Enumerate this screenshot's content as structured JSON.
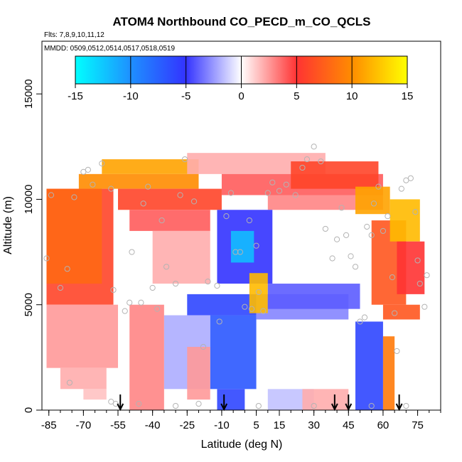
{
  "chart_data": {
    "type": "heatmap",
    "title": "ATOM4 Northbound CO_PECD_m_CO_QCLS",
    "subtitle_flights": "Flts: 7,8,9,10,11,12",
    "subtitle_dates": "MMDD: 0509,0512,0514,0517,0518,0519",
    "xlabel": "Latitude (deg N)",
    "ylabel": "Altitude (m)",
    "x_ticks": [
      -85,
      -70,
      -55,
      -40,
      -25,
      -10,
      5,
      15,
      30,
      45,
      60,
      75
    ],
    "y_ticks": [
      0,
      5000,
      10000,
      15000
    ],
    "xlim": [
      -88,
      85
    ],
    "ylim": [
      0,
      17500
    ],
    "colorbar": {
      "ticks": [
        -15,
        -10,
        -5,
        0,
        5,
        10,
        15
      ],
      "range": [
        -15,
        15
      ],
      "stops": [
        {
          "v": -15,
          "color": "#00ffff"
        },
        {
          "v": -10,
          "color": "#1e90ff"
        },
        {
          "v": -5,
          "color": "#3333ff"
        },
        {
          "v": 0,
          "color": "#ffffff"
        },
        {
          "v": 5,
          "color": "#ff3333"
        },
        {
          "v": 10,
          "color": "#ff8c00"
        },
        {
          "v": 15,
          "color": "#ffff00"
        }
      ]
    },
    "profile_latitudes": [
      -54,
      -9,
      39,
      45,
      67
    ],
    "regions": [
      {
        "lat": [
          -86,
          -57
        ],
        "alt": [
          5000,
          10500
        ],
        "value": 6
      },
      {
        "lat": [
          -86,
          -62
        ],
        "alt": [
          6000,
          10500
        ],
        "value": 8
      },
      {
        "lat": [
          -86,
          -55
        ],
        "alt": [
          2000,
          5000
        ],
        "value": 2.5
      },
      {
        "lat": [
          -80,
          -60
        ],
        "alt": [
          1000,
          2000
        ],
        "value": 2
      },
      {
        "lat": [
          -70,
          -60
        ],
        "alt": [
          500,
          1000
        ],
        "value": 1.5
      },
      {
        "lat": [
          -72,
          -20
        ],
        "alt": [
          10500,
          11200
        ],
        "value": 10
      },
      {
        "lat": [
          -62,
          -20
        ],
        "alt": [
          11200,
          11900
        ],
        "value": 11
      },
      {
        "lat": [
          -55,
          -10
        ],
        "alt": [
          9500,
          10500
        ],
        "value": 6
      },
      {
        "lat": [
          -50,
          -15
        ],
        "alt": [
          8500,
          9500
        ],
        "value": 4
      },
      {
        "lat": [
          -40,
          -15
        ],
        "alt": [
          6000,
          8500
        ],
        "value": 2
      },
      {
        "lat": [
          -25,
          35
        ],
        "alt": [
          11200,
          12200
        ],
        "value": 2
      },
      {
        "lat": [
          -10,
          60
        ],
        "alt": [
          10200,
          11200
        ],
        "value": 4
      },
      {
        "lat": [
          10,
          60
        ],
        "alt": [
          9500,
          10200
        ],
        "value": 3
      },
      {
        "lat": [
          20,
          58
        ],
        "alt": [
          10500,
          11800
        ],
        "value": 6
      },
      {
        "lat": [
          48,
          63
        ],
        "alt": [
          9300,
          10600
        ],
        "value": 11
      },
      {
        "lat": [
          55,
          70
        ],
        "alt": [
          5000,
          9000
        ],
        "value": 7
      },
      {
        "lat": [
          63,
          76
        ],
        "alt": [
          8000,
          10000
        ],
        "value": 12
      },
      {
        "lat": [
          66,
          78
        ],
        "alt": [
          5500,
          8000
        ],
        "value": 5
      },
      {
        "lat": [
          -12,
          12
        ],
        "alt": [
          6000,
          9500
        ],
        "value": -5
      },
      {
        "lat": [
          -6,
          4
        ],
        "alt": [
          7000,
          8500
        ],
        "value": -12
      },
      {
        "lat": [
          -25,
          5
        ],
        "alt": [
          4500,
          5500
        ],
        "value": -6
      },
      {
        "lat": [
          -15,
          5
        ],
        "alt": [
          1000,
          4500
        ],
        "value": -7
      },
      {
        "lat": [
          -12,
          0
        ],
        "alt": [
          0,
          1000
        ],
        "value": -6
      },
      {
        "lat": [
          -35,
          -15
        ],
        "alt": [
          1000,
          4500
        ],
        "value": -2
      },
      {
        "lat": [
          5,
          45
        ],
        "alt": [
          4300,
          5500
        ],
        "value": -3
      },
      {
        "lat": [
          10,
          30
        ],
        "alt": [
          0,
          1000
        ],
        "value": -1.5
      },
      {
        "lat": [
          25,
          45
        ],
        "alt": [
          0,
          1000
        ],
        "value": 2
      },
      {
        "lat": [
          48,
          60
        ],
        "alt": [
          0,
          4200
        ],
        "value": -6
      },
      {
        "lat": [
          60,
          65
        ],
        "alt": [
          0,
          3500
        ],
        "value": 9
      },
      {
        "lat": [
          60,
          76
        ],
        "alt": [
          4300,
          5000
        ],
        "value": 7
      },
      {
        "lat": [
          2,
          10
        ],
        "alt": [
          4600,
          6500
        ],
        "value": 12
      },
      {
        "lat": [
          10,
          50
        ],
        "alt": [
          4800,
          6000
        ],
        "value": -4
      },
      {
        "lat": [
          -50,
          -35
        ],
        "alt": [
          0,
          5000
        ],
        "value": 3
      },
      {
        "lat": [
          -25,
          -15
        ],
        "alt": [
          500,
          3000
        ],
        "value": 2.5
      }
    ],
    "observations": [
      [
        -86,
        7200
      ],
      [
        -84,
        10200
      ],
      [
        -80,
        5800
      ],
      [
        -77,
        6700
      ],
      [
        -76,
        1300
      ],
      [
        -74,
        10100
      ],
      [
        -70,
        11300
      ],
      [
        -68,
        11400
      ],
      [
        -66,
        10700
      ],
      [
        -62,
        11700
      ],
      [
        -58,
        10500
      ],
      [
        -57,
        5700
      ],
      [
        -56,
        300
      ],
      [
        -52,
        4700
      ],
      [
        -50,
        5100
      ],
      [
        -49,
        7500
      ],
      [
        -45,
        5100
      ],
      [
        -44,
        9800
      ],
      [
        -42,
        10600
      ],
      [
        -40,
        5800
      ],
      [
        -38,
        4800
      ],
      [
        -36,
        9000
      ],
      [
        -34,
        6800
      ],
      [
        -30,
        6000
      ],
      [
        -28,
        10200
      ],
      [
        -26,
        11900
      ],
      [
        -22,
        9900
      ],
      [
        -18,
        3000
      ],
      [
        -16,
        6100
      ],
      [
        -12,
        5900
      ],
      [
        -11,
        4200
      ],
      [
        -8,
        9200
      ],
      [
        -6,
        10300
      ],
      [
        -4,
        7500
      ],
      [
        -2,
        7500
      ],
      [
        0,
        4900
      ],
      [
        2,
        9000
      ],
      [
        3,
        4800
      ],
      [
        5,
        7800
      ],
      [
        6,
        5600
      ],
      [
        8,
        4700
      ],
      [
        10,
        10300
      ],
      [
        12,
        10800
      ],
      [
        15,
        10400
      ],
      [
        18,
        10700
      ],
      [
        22,
        10200
      ],
      [
        25,
        11500
      ],
      [
        27,
        11900
      ],
      [
        30,
        12500
      ],
      [
        33,
        11800
      ],
      [
        35,
        8600
      ],
      [
        38,
        7200
      ],
      [
        40,
        8100
      ],
      [
        42,
        9600
      ],
      [
        44,
        8300
      ],
      [
        46,
        7300
      ],
      [
        48,
        6800
      ],
      [
        50,
        4200
      ],
      [
        52,
        4400
      ],
      [
        53,
        8700
      ],
      [
        55,
        8300
      ],
      [
        56,
        9800
      ],
      [
        58,
        10600
      ],
      [
        60,
        8500
      ],
      [
        62,
        9200
      ],
      [
        64,
        6300
      ],
      [
        65,
        4600
      ],
      [
        66,
        2800
      ],
      [
        68,
        10500
      ],
      [
        70,
        10900
      ],
      [
        72,
        11000
      ],
      [
        74,
        9400
      ],
      [
        75,
        7100
      ],
      [
        76,
        6000
      ],
      [
        78,
        4900
      ],
      [
        79,
        6400
      ],
      [
        -58,
        400
      ],
      [
        -46,
        300
      ],
      [
        -30,
        200
      ],
      [
        -20,
        300
      ],
      [
        6,
        200
      ],
      [
        30,
        200
      ],
      [
        55,
        200
      ],
      [
        70,
        200
      ]
    ]
  }
}
